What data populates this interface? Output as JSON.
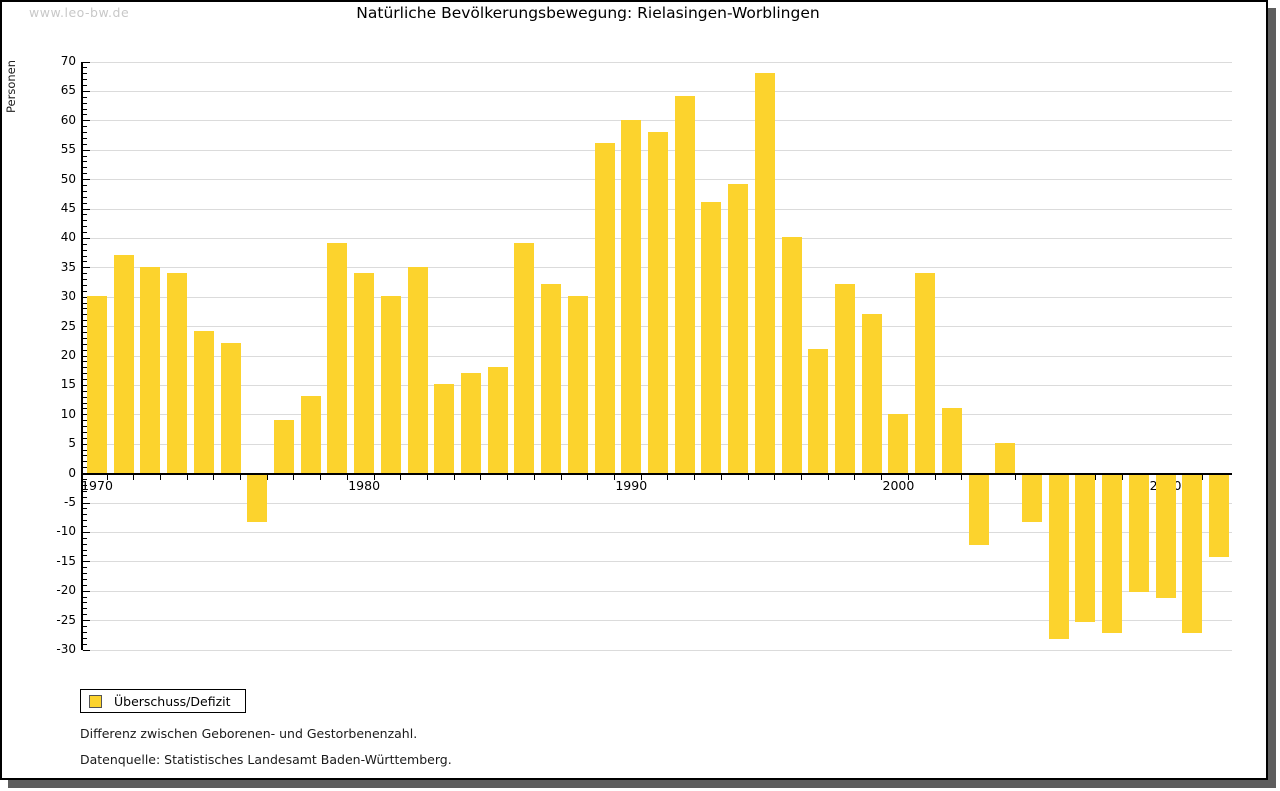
{
  "watermark": "www.leo-bw.de",
  "title": "Natürliche Bevölkerungsbewegung: Rielasingen-Worblingen",
  "legend": {
    "label": "Überschuss/Defizit"
  },
  "footnotes": [
    "Differenz zwischen Geborenen- und Gestorbenenzahl.",
    "Datenquelle: Statistisches Landesamt Baden-Württemberg."
  ],
  "colors": {
    "bar": "#fcd32d",
    "grid": "#dbdbdb",
    "axis": "#000000",
    "watermark": "#c8c8c8",
    "shadow": "#5e5e5e"
  },
  "chart_data": {
    "type": "bar",
    "title": "Natürliche Bevölkerungsbewegung: Rielasingen-Worblingen",
    "ylabel": "Personen",
    "xlabel": "",
    "series_name": "Überschuss/Defizit",
    "ylim": [
      -30,
      70
    ],
    "ytick_step": 5,
    "yticks": [
      70,
      65,
      60,
      55,
      50,
      45,
      40,
      35,
      30,
      25,
      20,
      15,
      10,
      5,
      0,
      -5,
      -10,
      -15,
      -20,
      -25,
      -30
    ],
    "xtick_labels": [
      "1970",
      "1980",
      "1990",
      "2000",
      "2010"
    ],
    "grid": true,
    "legend_position": "bottom-left",
    "x": [
      1970,
      1971,
      1972,
      1973,
      1974,
      1975,
      1976,
      1977,
      1978,
      1979,
      1980,
      1981,
      1982,
      1983,
      1984,
      1985,
      1986,
      1987,
      1988,
      1989,
      1990,
      1991,
      1992,
      1993,
      1994,
      1995,
      1996,
      1997,
      1998,
      1999,
      2000,
      2001,
      2002,
      2003,
      2004,
      2005,
      2006,
      2007,
      2008,
      2009,
      2010,
      2011,
      2012
    ],
    "values": [
      30,
      37,
      35,
      34,
      24,
      22,
      -8,
      9,
      13,
      39,
      34,
      30,
      35,
      15,
      17,
      18,
      39,
      32,
      30,
      56,
      60,
      58,
      64,
      46,
      49,
      68,
      40,
      21,
      32,
      27,
      10,
      34,
      11,
      -12,
      5,
      -8,
      -28,
      -25,
      -27,
      -20,
      -21,
      -27,
      -14
    ]
  }
}
